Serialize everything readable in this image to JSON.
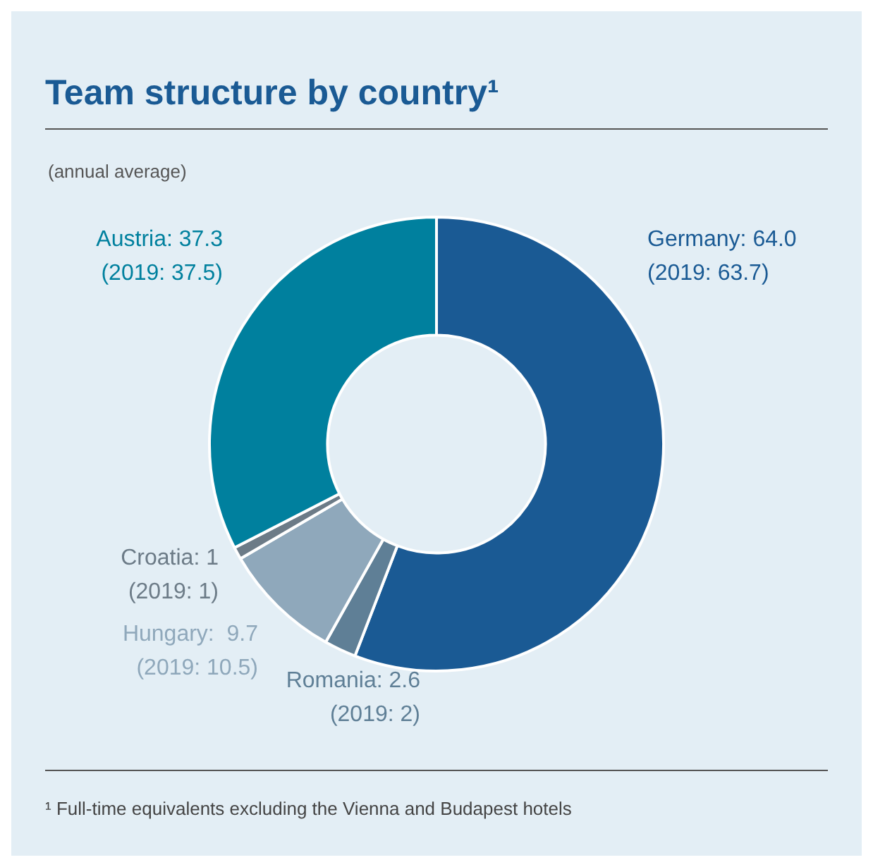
{
  "chart_data": {
    "type": "donut",
    "title": "Team structure by country¹",
    "subtitle": "(annual average)",
    "categories": [
      "Germany",
      "Romania",
      "Hungary",
      "Croatia",
      "Austria"
    ],
    "values": [
      64.0,
      2.6,
      9.7,
      1,
      37.3
    ],
    "colors": [
      "#1a5a94",
      "#5f7f96",
      "#8fa8bb",
      "#6c7b87",
      "#00809e"
    ],
    "value_labels": [
      "64.0 (2019: 63.7)",
      "2.6 (2019: 2)",
      " 9.7 (2019: 10.5)",
      "1 (2019: 1)",
      "37.3 (2019: 37.5)"
    ],
    "annotations": [
      "¹ Full-time equivalents excluding the Vienna and Budapest hotels"
    ],
    "legend": false
  }
}
